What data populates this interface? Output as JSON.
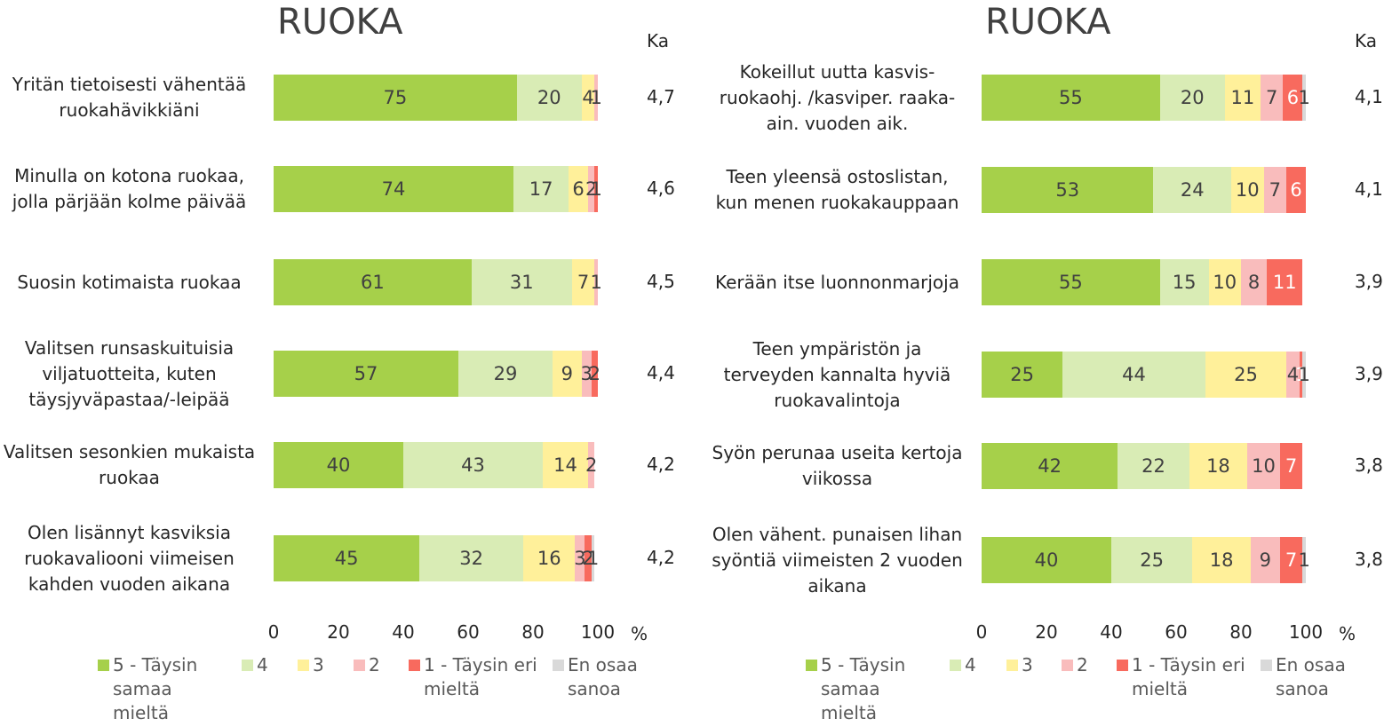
{
  "chart_data": [
    {
      "type": "stacked_bar_horizontal",
      "title": "RUOKA",
      "ka_label": "Ka",
      "x_unit": "%",
      "categories": [
        "Yritän tietoisesti vähentää ruokahävikkiäni",
        "Minulla on kotona ruokaa, jolla pärjään kolme päivää",
        "Suosin kotimaista ruokaa",
        "Valitsen runsaskuituisia viljatuotteita, kuten täysjyväpastaa/-leipää",
        "Valitsen sesonkien mukaista ruokaa",
        "Olen lisännyt kasviksia ruokavaliooni viimeisen kahden vuoden aikana"
      ],
      "ka": [
        "4,7",
        "4,6",
        "4,5",
        "4,4",
        "4,2",
        "4,2"
      ],
      "xlim": [
        0,
        100
      ],
      "xticks": [
        0,
        20,
        40,
        60,
        80,
        100
      ],
      "series": [
        {
          "name": "5 - Täysin samaa mieltä",
          "color": "#a6d04a",
          "values": [
            75,
            74,
            61,
            57,
            40,
            45
          ]
        },
        {
          "name": "4",
          "color": "#d9ecb5",
          "values": [
            20,
            17,
            31,
            29,
            43,
            32
          ]
        },
        {
          "name": "3",
          "color": "#fff09a",
          "values": [
            4,
            6,
            7,
            9,
            14,
            16
          ]
        },
        {
          "name": "2",
          "color": "#f9bcbc",
          "values": [
            1,
            2,
            1,
            3,
            2,
            3
          ]
        },
        {
          "name": "1 - Täysin eri mieltä",
          "color": "#f86a5e",
          "values": [
            null,
            1,
            null,
            2,
            null,
            2
          ]
        },
        {
          "name": "En osaa sanoa",
          "color": "#d9d9d9",
          "values": [
            null,
            null,
            null,
            null,
            null,
            1
          ]
        }
      ]
    },
    {
      "type": "stacked_bar_horizontal",
      "title": "RUOKA",
      "ka_label": "Ka",
      "x_unit": "%",
      "categories": [
        "Kokeillut uutta kasvis-ruokaohj. /kasviper. raaka-ain. vuoden aik.",
        "Teen yleensä ostoslistan, kun menen ruokakauppaan",
        "Kerään itse luonnonmarjoja",
        "Teen ympäristön ja terveyden kannalta hyviä ruokavalintoja",
        "Syön perunaa useita kertoja viikossa",
        "Olen vähent. punaisen lihan syöntiä viimeisten 2 vuoden aikana"
      ],
      "ka": [
        "4,1",
        "4,1",
        "3,9",
        "3,9",
        "3,8",
        "3,8"
      ],
      "xlim": [
        0,
        100
      ],
      "xticks": [
        0,
        20,
        40,
        60,
        80,
        100
      ],
      "series": [
        {
          "name": "5 - Täysin samaa mieltä",
          "color": "#a6d04a",
          "values": [
            55,
            53,
            55,
            25,
            42,
            40
          ]
        },
        {
          "name": "4",
          "color": "#d9ecb5",
          "values": [
            20,
            24,
            15,
            44,
            22,
            25
          ]
        },
        {
          "name": "3",
          "color": "#fff09a",
          "values": [
            11,
            10,
            10,
            25,
            18,
            18
          ]
        },
        {
          "name": "2",
          "color": "#f9bcbc",
          "values": [
            7,
            7,
            8,
            4,
            10,
            9
          ]
        },
        {
          "name": "1 - Täysin eri mieltä",
          "color": "#f86a5e",
          "values": [
            6,
            6,
            11,
            1,
            7,
            7
          ]
        },
        {
          "name": "En osaa sanoa",
          "color": "#d9d9d9",
          "values": [
            1,
            null,
            null,
            1,
            null,
            1
          ]
        }
      ]
    }
  ]
}
